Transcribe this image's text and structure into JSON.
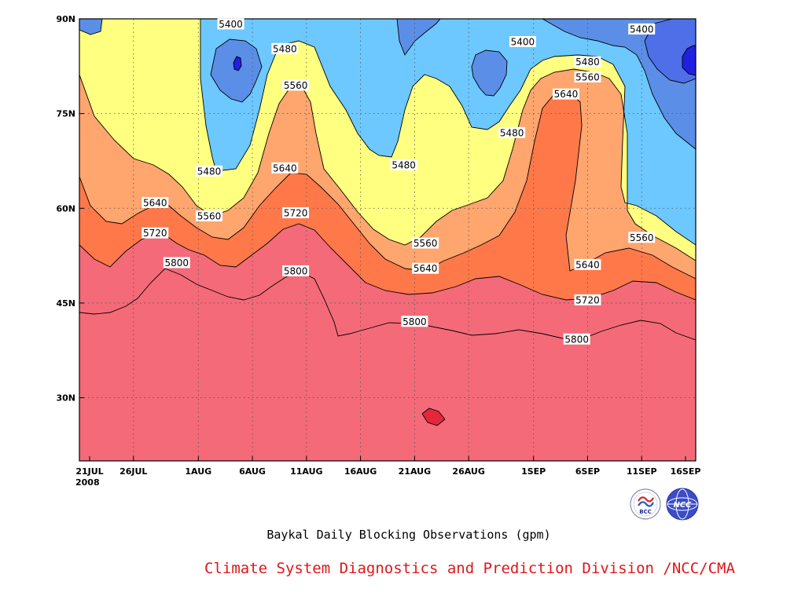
{
  "chart_data": {
    "type": "contour",
    "title": "Baykal Daily Blocking Observations (gpm)",
    "credit": "Climate System Diagnostics and Prediction Division /NCC/CMA",
    "x_ticks": [
      "21JUL",
      "26JUL",
      "1AUG",
      "6AUG",
      "11AUG",
      "16AUG",
      "21AUG",
      "26AUG",
      "1SEP",
      "6SEP",
      "11SEP",
      "16SEP"
    ],
    "x_year_label": "2008",
    "y_ticks": [
      "30N",
      "45N",
      "60N",
      "75N",
      "90N"
    ],
    "xlim": [
      "2008-07-21",
      "2008-09-16"
    ],
    "ylim": [
      20,
      90
    ],
    "grid": true,
    "contour_levels": [
      5400,
      5480,
      5560,
      5640,
      5720,
      5800
    ],
    "contour_labels": [
      {
        "value": "5400",
        "date": "2008-08-04",
        "lat": 89.2
      },
      {
        "value": "5400",
        "date": "2008-08-31",
        "lat": 86.4
      },
      {
        "value": "5400",
        "date": "2008-09-11",
        "lat": 88.4
      },
      {
        "value": "5480",
        "date": "2008-08-09",
        "lat": 85.3
      },
      {
        "value": "5480",
        "date": "2008-09-06",
        "lat": 83.2
      },
      {
        "value": "5480",
        "date": "2008-08-30",
        "lat": 72.0
      },
      {
        "value": "5480",
        "date": "2008-08-20",
        "lat": 66.9
      },
      {
        "value": "5480",
        "date": "2008-08-02",
        "lat": 65.9
      },
      {
        "value": "5560",
        "date": "2008-08-10",
        "lat": 79.5
      },
      {
        "value": "5560",
        "date": "2008-09-06",
        "lat": 80.8
      },
      {
        "value": "5560",
        "date": "2008-08-02",
        "lat": 58.8
      },
      {
        "value": "5560",
        "date": "2008-08-22",
        "lat": 54.5
      },
      {
        "value": "5560",
        "date": "2008-09-11",
        "lat": 55.4
      },
      {
        "value": "5640",
        "date": "2008-09-04",
        "lat": 78.1
      },
      {
        "value": "5640",
        "date": "2008-08-09",
        "lat": 66.4
      },
      {
        "value": "5640",
        "date": "2008-07-28",
        "lat": 60.9
      },
      {
        "value": "5640",
        "date": "2008-08-22",
        "lat": 50.5
      },
      {
        "value": "5640",
        "date": "2008-09-06",
        "lat": 51.1
      },
      {
        "value": "5720",
        "date": "2008-07-28",
        "lat": 56.1
      },
      {
        "value": "5720",
        "date": "2008-08-10",
        "lat": 59.3
      },
      {
        "value": "5720",
        "date": "2008-09-06",
        "lat": 45.5
      },
      {
        "value": "5800",
        "date": "2008-07-30",
        "lat": 51.4
      },
      {
        "value": "5800",
        "date": "2008-08-10",
        "lat": 50.1
      },
      {
        "value": "5800",
        "date": "2008-08-21",
        "lat": 42.1
      },
      {
        "value": "5800",
        "date": "2008-09-05",
        "lat": 39.3
      }
    ],
    "colors": {
      "below_5400": "#2020e0",
      "5400_5480_deep": "#4f6fe8",
      "5400_5480": "#5b8ee6",
      "5480_5560": "#6cc8ff",
      "5560_5640": "#ffff80",
      "5640_5720": "#ffdc9c",
      "5720_5800": "#ffa56e",
      "5800_5880": "#ff7849",
      "above_5880": "#f46a78",
      "peak": "#e6263a"
    }
  },
  "logos": {
    "left": {
      "name": "bcc-logo",
      "text": "BCC"
    },
    "right": {
      "name": "ncc-logo",
      "text": "NCC"
    }
  }
}
